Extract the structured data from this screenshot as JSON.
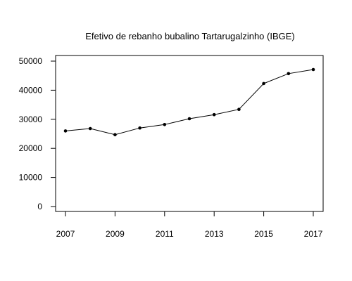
{
  "chart_data": {
    "type": "line",
    "title": "Efetivo de rebanho bubalino Tartarugalzinho (IBGE)",
    "xlabel": "",
    "ylabel": "",
    "x": [
      2007,
      2008,
      2009,
      2010,
      2011,
      2012,
      2013,
      2014,
      2015,
      2016,
      2017
    ],
    "series": [
      {
        "values": [
          26000,
          26800,
          24700,
          27000,
          28200,
          30200,
          31600,
          33400,
          42300,
          45700,
          47100
        ]
      }
    ],
    "xlim": [
      2007,
      2017
    ],
    "ylim": [
      0,
      50000
    ],
    "x_ticks": [
      2007,
      2009,
      2011,
      2013,
      2015,
      2017
    ],
    "y_ticks": [
      0,
      10000,
      20000,
      30000,
      40000,
      50000
    ],
    "grid": false,
    "markers": true
  }
}
